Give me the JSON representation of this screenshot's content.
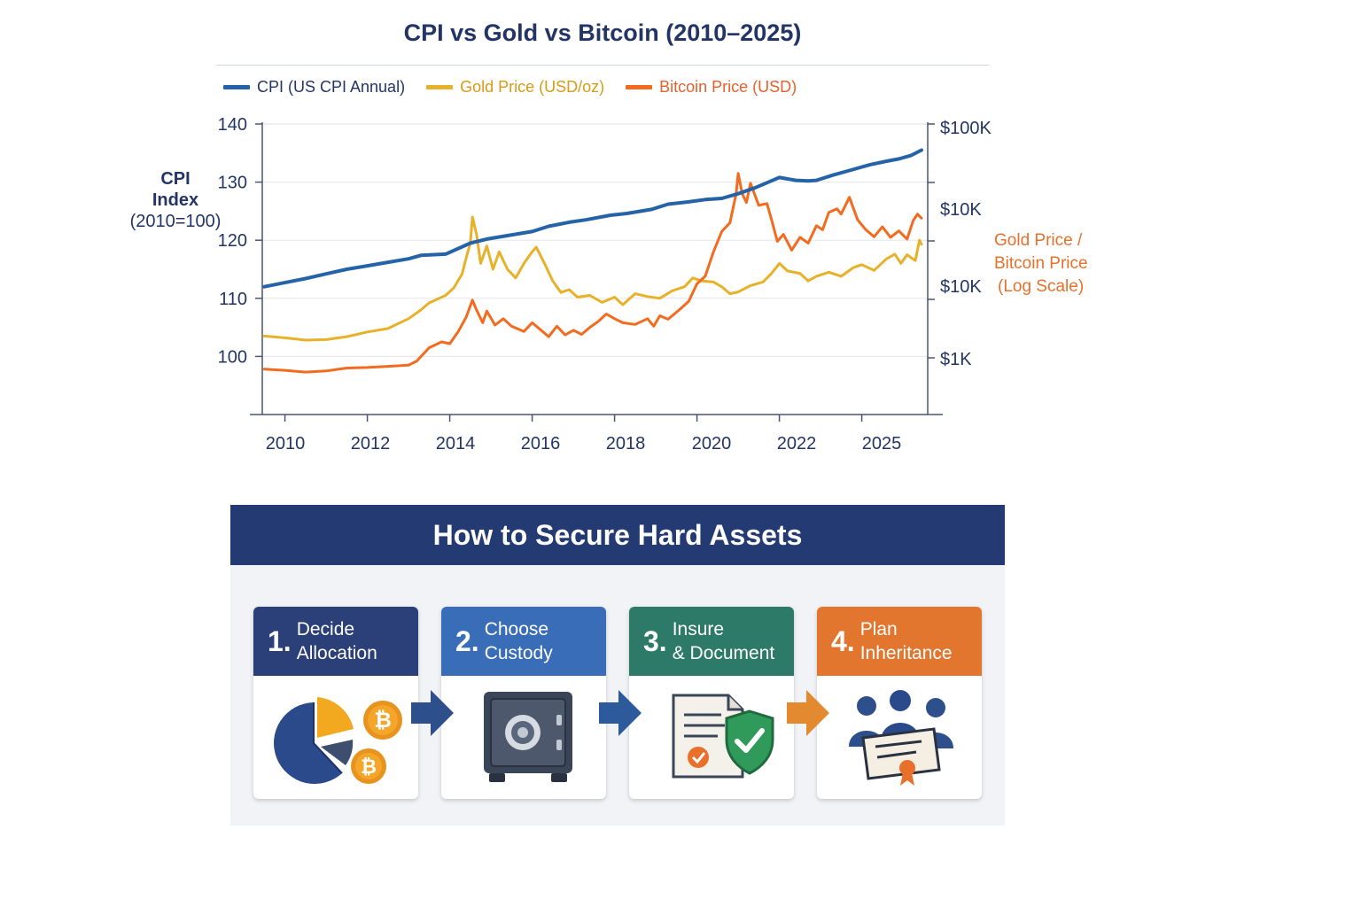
{
  "chart_data": {
    "type": "line",
    "title": "CPI vs Gold vs Bitcoin (2010–2025)",
    "left_axis": {
      "label_lines": [
        "CPI",
        "Index",
        "(2010=100)"
      ],
      "ticks": [
        "140",
        "130",
        "120",
        "110",
        "100"
      ],
      "range": [
        90,
        140
      ]
    },
    "right_axis": {
      "label_lines": [
        "Gold Price /",
        "Bitcoin Price",
        "(Log Scale)"
      ],
      "ticks": [
        "$100K",
        "$10K",
        "$10K",
        "$1K"
      ]
    },
    "x_axis": {
      "ticks": [
        "2010",
        "2012",
        "2014",
        "2016",
        "2018",
        "2020",
        "2022",
        "2025"
      ],
      "range": [
        2009.45,
        2025.6
      ]
    },
    "legend_placement": "top-left",
    "grid": true,
    "series": [
      {
        "name": "CPI (US CPI Annual)",
        "color": "#2563a8",
        "points": [
          [
            2009.5,
            112
          ],
          [
            2010,
            112.7
          ],
          [
            2010.5,
            113.4
          ],
          [
            2011,
            114.2
          ],
          [
            2011.5,
            115
          ],
          [
            2012,
            115.6
          ],
          [
            2012.5,
            116.2
          ],
          [
            2013,
            116.8
          ],
          [
            2013.3,
            117.4
          ],
          [
            2013.9,
            117.6
          ],
          [
            2014.5,
            119.5
          ],
          [
            2014.9,
            120.2
          ],
          [
            2015.4,
            120.8
          ],
          [
            2016,
            121.5
          ],
          [
            2016.4,
            122.4
          ],
          [
            2016.9,
            123.1
          ],
          [
            2017.3,
            123.5
          ],
          [
            2017.9,
            124.3
          ],
          [
            2018.3,
            124.6
          ],
          [
            2018.9,
            125.3
          ],
          [
            2019.3,
            126.2
          ],
          [
            2019.8,
            126.6
          ],
          [
            2020.2,
            127
          ],
          [
            2020.6,
            127.2
          ],
          [
            2021,
            128
          ],
          [
            2021.4,
            129
          ],
          [
            2021.8,
            130.2
          ],
          [
            2022,
            130.8
          ],
          [
            2022.4,
            130.3
          ],
          [
            2022.7,
            130.2
          ],
          [
            2022.9,
            130.3
          ],
          [
            2023.3,
            131.2
          ],
          [
            2023.7,
            132
          ],
          [
            2024.2,
            133
          ],
          [
            2024.6,
            133.6
          ],
          [
            2024.9,
            134
          ],
          [
            2025.2,
            134.6
          ],
          [
            2025.45,
            135.5
          ]
        ]
      },
      {
        "name": "Gold Price (USD/oz)",
        "color": "#e8b12a",
        "points": [
          [
            2009.5,
            103.5
          ],
          [
            2010,
            103.2
          ],
          [
            2010.5,
            102.8
          ],
          [
            2011,
            102.9
          ],
          [
            2011.5,
            103.4
          ],
          [
            2012,
            104.2
          ],
          [
            2012.5,
            104.8
          ],
          [
            2013,
            106.5
          ],
          [
            2013.3,
            108
          ],
          [
            2013.5,
            109.2
          ],
          [
            2013.9,
            110.5
          ],
          [
            2014.1,
            111.8
          ],
          [
            2014.3,
            114.2
          ],
          [
            2014.4,
            117
          ],
          [
            2014.5,
            119.5
          ],
          [
            2014.55,
            124
          ],
          [
            2014.65,
            121
          ],
          [
            2014.75,
            116
          ],
          [
            2014.9,
            119
          ],
          [
            2015.05,
            115
          ],
          [
            2015.2,
            118
          ],
          [
            2015.4,
            115
          ],
          [
            2015.6,
            113.5
          ],
          [
            2015.8,
            116
          ],
          [
            2016,
            118
          ],
          [
            2016.1,
            118.8
          ],
          [
            2016.3,
            116
          ],
          [
            2016.5,
            113
          ],
          [
            2016.7,
            111
          ],
          [
            2016.9,
            111.5
          ],
          [
            2017.1,
            110.2
          ],
          [
            2017.4,
            110.5
          ],
          [
            2017.7,
            109.3
          ],
          [
            2018,
            110.2
          ],
          [
            2018.2,
            108.9
          ],
          [
            2018.5,
            110.8
          ],
          [
            2018.8,
            110.3
          ],
          [
            2019.1,
            110
          ],
          [
            2019.4,
            111.3
          ],
          [
            2019.7,
            112
          ],
          [
            2019.9,
            113.5
          ],
          [
            2020.1,
            113
          ],
          [
            2020.4,
            112.8
          ],
          [
            2020.6,
            112
          ],
          [
            2020.8,
            110.8
          ],
          [
            2021,
            111.1
          ],
          [
            2021.3,
            112.2
          ],
          [
            2021.6,
            112.8
          ],
          [
            2021.8,
            114.2
          ],
          [
            2022,
            116
          ],
          [
            2022.2,
            114.7
          ],
          [
            2022.5,
            114.3
          ],
          [
            2022.7,
            113
          ],
          [
            2022.9,
            113.8
          ],
          [
            2023.2,
            114.5
          ],
          [
            2023.5,
            113.8
          ],
          [
            2023.8,
            115.3
          ],
          [
            2024,
            115.8
          ],
          [
            2024.3,
            114.8
          ],
          [
            2024.6,
            116.8
          ],
          [
            2024.8,
            117.6
          ],
          [
            2024.95,
            116
          ],
          [
            2025.1,
            117.5
          ],
          [
            2025.3,
            116.5
          ],
          [
            2025.4,
            120
          ],
          [
            2025.45,
            119.3
          ]
        ]
      },
      {
        "name": "Bitcoin Price (USD)",
        "color": "#f26b1f",
        "points": [
          [
            2009.5,
            97.8
          ],
          [
            2010,
            97.6
          ],
          [
            2010.5,
            97.3
          ],
          [
            2011,
            97.5
          ],
          [
            2011.5,
            98
          ],
          [
            2012,
            98.1
          ],
          [
            2012.5,
            98.3
          ],
          [
            2013,
            98.5
          ],
          [
            2013.2,
            99.2
          ],
          [
            2013.5,
            101.5
          ],
          [
            2013.8,
            102.5
          ],
          [
            2014,
            102.2
          ],
          [
            2014.2,
            104.2
          ],
          [
            2014.4,
            106.8
          ],
          [
            2014.55,
            109.7
          ],
          [
            2014.65,
            108
          ],
          [
            2014.8,
            105.8
          ],
          [
            2014.9,
            107.8
          ],
          [
            2015.1,
            105.4
          ],
          [
            2015.3,
            106.5
          ],
          [
            2015.5,
            105.2
          ],
          [
            2015.8,
            104.3
          ],
          [
            2016,
            105.8
          ],
          [
            2016.2,
            104.6
          ],
          [
            2016.4,
            103.4
          ],
          [
            2016.6,
            105.2
          ],
          [
            2016.8,
            103.7
          ],
          [
            2017,
            104.5
          ],
          [
            2017.2,
            103.8
          ],
          [
            2017.4,
            105
          ],
          [
            2017.6,
            106
          ],
          [
            2017.8,
            107.3
          ],
          [
            2018,
            106.5
          ],
          [
            2018.2,
            105.8
          ],
          [
            2018.5,
            105.5
          ],
          [
            2018.8,
            106.5
          ],
          [
            2018.95,
            105.2
          ],
          [
            2019.1,
            107
          ],
          [
            2019.3,
            106.4
          ],
          [
            2019.6,
            108.2
          ],
          [
            2019.8,
            109.5
          ],
          [
            2020,
            112.5
          ],
          [
            2020.2,
            113.8
          ],
          [
            2020.4,
            118
          ],
          [
            2020.6,
            121.5
          ],
          [
            2020.8,
            123
          ],
          [
            2020.95,
            128
          ],
          [
            2021,
            131.5
          ],
          [
            2021.1,
            128
          ],
          [
            2021.2,
            126.5
          ],
          [
            2021.3,
            129.8
          ],
          [
            2021.5,
            126
          ],
          [
            2021.7,
            126.3
          ],
          [
            2021.8,
            123.8
          ],
          [
            2021.95,
            119.8
          ],
          [
            2022.1,
            121
          ],
          [
            2022.3,
            118.3
          ],
          [
            2022.5,
            120.5
          ],
          [
            2022.7,
            119.5
          ],
          [
            2022.9,
            122.5
          ],
          [
            2023.05,
            121.8
          ],
          [
            2023.2,
            124.8
          ],
          [
            2023.4,
            125.4
          ],
          [
            2023.5,
            124.5
          ],
          [
            2023.7,
            127.4
          ],
          [
            2023.9,
            123.5
          ],
          [
            2024.1,
            121.8
          ],
          [
            2024.3,
            120.6
          ],
          [
            2024.5,
            122.3
          ],
          [
            2024.7,
            120.5
          ],
          [
            2024.9,
            121.6
          ],
          [
            2025.1,
            120.2
          ],
          [
            2025.25,
            123.4
          ],
          [
            2025.35,
            124.5
          ],
          [
            2025.45,
            123.8
          ]
        ]
      }
    ]
  },
  "steps": {
    "title": "How to Secure Hard Assets",
    "items": [
      {
        "num": "1.",
        "line1": "Decide",
        "line2": "Allocation",
        "color": "#2b3f78",
        "icon": "pie-chart-bitcoin-icon"
      },
      {
        "num": "2.",
        "line1": "Choose",
        "line2": "Custody",
        "color": "#3a6db8",
        "icon": "safe-icon"
      },
      {
        "num": "3.",
        "line1": "Insure",
        "line2": "& Document",
        "color": "#2e7a68",
        "icon": "document-shield-icon"
      },
      {
        "num": "4.",
        "line1": "Plan",
        "line2": "Inheritance",
        "color": "#e2762e",
        "icon": "family-certificate-icon"
      }
    ],
    "arrow_colors": [
      "#2d4f8c",
      "#2d5a9a",
      "#e38a30"
    ]
  }
}
